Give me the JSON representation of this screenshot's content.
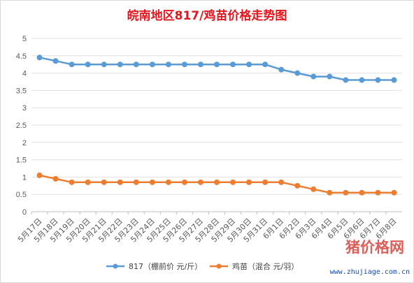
{
  "chart_data": {
    "type": "line",
    "title": "皖南地区817/鸡苗价格走势图",
    "categories": [
      "5月17日",
      "5月18日",
      "5月19日",
      "5月20日",
      "5月21日",
      "5月22日",
      "5月23日",
      "5月24日",
      "5月25日",
      "5月26日",
      "5月27日",
      "5月28日",
      "5月29日",
      "5月30日",
      "5月31日",
      "6月1日",
      "6月2日",
      "6月3日",
      "6月4日",
      "6月5日",
      "6月6日",
      "6月7日",
      "6月8日"
    ],
    "series": [
      {
        "name": "817（棚前价 元/斤）",
        "color": "#5b9bd5",
        "values": [
          4.45,
          4.35,
          4.25,
          4.25,
          4.25,
          4.25,
          4.25,
          4.25,
          4.25,
          4.25,
          4.25,
          4.25,
          4.25,
          4.25,
          4.25,
          4.1,
          4.0,
          3.9,
          3.9,
          3.8,
          3.8,
          3.8,
          3.8
        ]
      },
      {
        "name": "鸡苗（混合 元/羽）",
        "color": "#ed7d31",
        "values": [
          1.05,
          0.95,
          0.85,
          0.85,
          0.85,
          0.85,
          0.85,
          0.85,
          0.85,
          0.85,
          0.85,
          0.85,
          0.85,
          0.85,
          0.85,
          0.85,
          0.75,
          0.65,
          0.55,
          0.55,
          0.55,
          0.55,
          0.55
        ]
      }
    ],
    "ylim": [
      0,
      5
    ],
    "yticks": [
      "0",
      "0.5",
      "1",
      "1.5",
      "2",
      "2.5",
      "3",
      "3.5",
      "4",
      "4.5",
      "5"
    ],
    "grid": true,
    "legend": "bottom"
  },
  "watermark": {
    "brand": "猪价格网",
    "url": "www.zhujiage.com.cn"
  }
}
